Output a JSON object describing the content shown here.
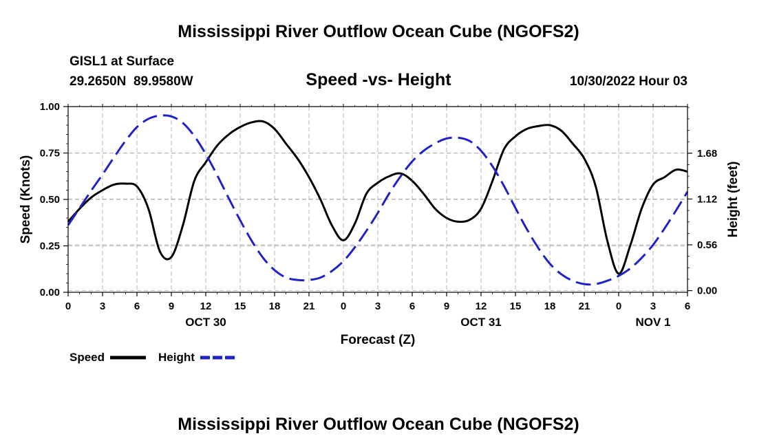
{
  "chart_data": {
    "type": "line",
    "title": "Mississippi River Outflow Ocean Cube (NGOFS2)",
    "station": "GISL1 at Surface",
    "location": "29.2650N  89.9580W",
    "subtitle": "Speed -vs- Height",
    "datetime": "10/30/2022 Hour 03",
    "xlabel": "Forecast (Z)",
    "ylabel_left": "Speed (Knots)",
    "ylabel_right": "Height (feet)",
    "x_range": [
      0,
      54
    ],
    "x_ticks": [
      {
        "x": 0,
        "label": "0"
      },
      {
        "x": 3,
        "label": "3"
      },
      {
        "x": 6,
        "label": "6"
      },
      {
        "x": 9,
        "label": "9"
      },
      {
        "x": 12,
        "label": "12"
      },
      {
        "x": 15,
        "label": "15"
      },
      {
        "x": 18,
        "label": "18"
      },
      {
        "x": 21,
        "label": "21"
      },
      {
        "x": 24,
        "label": "0"
      },
      {
        "x": 27,
        "label": "3"
      },
      {
        "x": 30,
        "label": "6"
      },
      {
        "x": 33,
        "label": "9"
      },
      {
        "x": 36,
        "label": "12"
      },
      {
        "x": 39,
        "label": "15"
      },
      {
        "x": 42,
        "label": "18"
      },
      {
        "x": 45,
        "label": "21"
      },
      {
        "x": 48,
        "label": "0"
      },
      {
        "x": 51,
        "label": "3"
      },
      {
        "x": 54,
        "label": "6"
      }
    ],
    "date_labels": [
      {
        "x": 12,
        "label": "OCT 30"
      },
      {
        "x": 36,
        "label": "OCT 31"
      },
      {
        "x": 51,
        "label": "NOV 1"
      }
    ],
    "y_left_range": [
      0,
      1.0
    ],
    "y_left_ticks": [
      {
        "value": 0,
        "label": "0.00"
      },
      {
        "value": 0.25,
        "label": "0.25"
      },
      {
        "value": 0.5,
        "label": "0.50"
      },
      {
        "value": 0.75,
        "label": "0.75"
      },
      {
        "value": 1.0,
        "label": "1.00"
      }
    ],
    "y_right_range": [
      -0.02,
      2.25
    ],
    "y_right_ticks": [
      {
        "value": 0.0,
        "label": "0.00"
      },
      {
        "value": 0.56,
        "label": "0.56"
      },
      {
        "value": 1.12,
        "label": "1.12"
      },
      {
        "value": 1.68,
        "label": "1.68"
      }
    ],
    "grid": true,
    "legend": "bottom-left",
    "series": [
      {
        "name": "Speed",
        "axis": "left",
        "color": "#000000",
        "dash": "solid",
        "x": [
          0,
          1,
          2,
          3,
          4,
          5,
          6,
          7,
          8,
          9,
          10,
          11,
          12,
          13,
          14,
          15,
          16,
          17,
          18,
          19,
          20,
          21,
          22,
          23,
          24,
          25,
          26,
          27,
          28,
          29,
          30,
          31,
          32,
          33,
          34,
          35,
          36,
          37,
          38,
          39,
          40,
          41,
          42,
          43,
          44,
          45,
          46,
          47,
          48,
          49,
          50,
          51,
          52,
          53,
          54
        ],
        "values": [
          0.38,
          0.45,
          0.51,
          0.55,
          0.58,
          0.585,
          0.57,
          0.45,
          0.22,
          0.19,
          0.36,
          0.6,
          0.7,
          0.79,
          0.85,
          0.89,
          0.915,
          0.92,
          0.88,
          0.8,
          0.72,
          0.62,
          0.5,
          0.36,
          0.28,
          0.37,
          0.53,
          0.59,
          0.625,
          0.64,
          0.6,
          0.53,
          0.45,
          0.4,
          0.38,
          0.39,
          0.45,
          0.6,
          0.77,
          0.84,
          0.88,
          0.895,
          0.9,
          0.87,
          0.8,
          0.72,
          0.57,
          0.28,
          0.1,
          0.25,
          0.45,
          0.58,
          0.62,
          0.66,
          0.65
        ]
      },
      {
        "name": "Height",
        "axis": "right",
        "color": "#1f22c8",
        "dash": "dashed",
        "x": [
          0,
          1,
          2,
          3,
          4,
          5,
          6,
          7,
          8,
          9,
          10,
          11,
          12,
          13,
          14,
          15,
          16,
          17,
          18,
          19,
          20,
          21,
          22,
          23,
          24,
          25,
          26,
          27,
          28,
          29,
          30,
          31,
          32,
          33,
          34,
          35,
          36,
          37,
          38,
          39,
          40,
          41,
          42,
          43,
          44,
          45,
          46,
          47,
          48,
          49,
          50,
          51,
          52,
          53,
          54
        ],
        "values": [
          0.8,
          1.01,
          1.22,
          1.42,
          1.63,
          1.83,
          2.0,
          2.1,
          2.14,
          2.13,
          2.05,
          1.89,
          1.67,
          1.41,
          1.13,
          0.86,
          0.61,
          0.4,
          0.25,
          0.16,
          0.13,
          0.13,
          0.16,
          0.24,
          0.36,
          0.53,
          0.73,
          0.95,
          1.19,
          1.4,
          1.58,
          1.71,
          1.8,
          1.86,
          1.87,
          1.83,
          1.71,
          1.52,
          1.28,
          1.01,
          0.75,
          0.52,
          0.33,
          0.2,
          0.12,
          0.08,
          0.08,
          0.12,
          0.18,
          0.27,
          0.4,
          0.56,
          0.76,
          0.98,
          1.21
        ]
      }
    ]
  }
}
